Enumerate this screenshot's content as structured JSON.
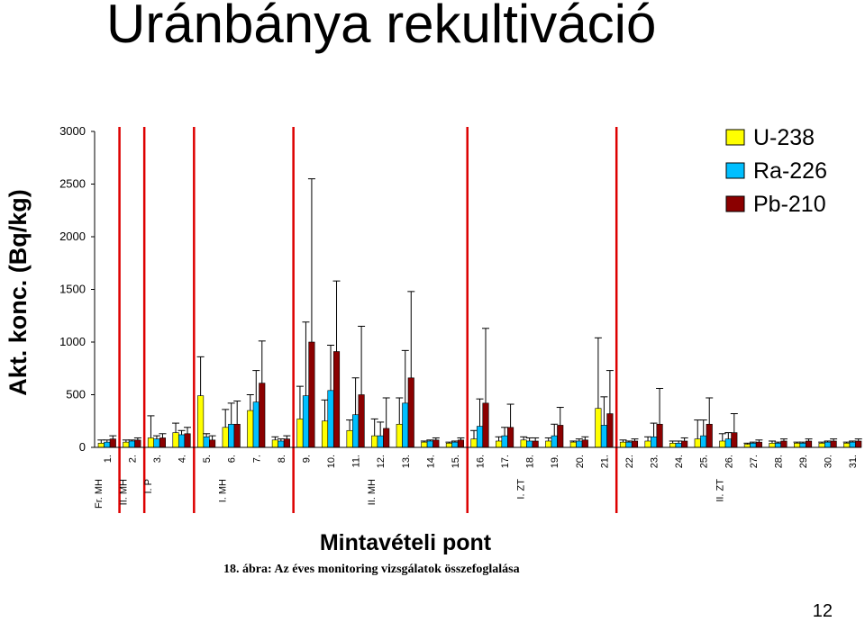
{
  "slide": {
    "title": "Uránbánya rekultiváció",
    "page_number": "12"
  },
  "chart_data": {
    "type": "bar",
    "title": "",
    "xlabel": "Mintavételi pont",
    "ylabel": "Akt. konc. (Bq/kg)",
    "caption": "18. ábra: Az éves monitoring vizsgálatok összefoglalása",
    "ylim": [
      0,
      3000
    ],
    "yticks": [
      0,
      500,
      1000,
      1500,
      2000,
      2500,
      3000
    ],
    "legend_position": "top-right",
    "categories": [
      "1.",
      "2.",
      "3.",
      "4.",
      "5.",
      "6.",
      "7.",
      "8.",
      "9.",
      "10.",
      "11.",
      "12.",
      "13.",
      "14.",
      "15.",
      "16.",
      "17.",
      "18.",
      "19.",
      "20.",
      "21.",
      "22.",
      "23.",
      "24.",
      "25.",
      "26.",
      "27.",
      "28.",
      "29.",
      "30.",
      "31."
    ],
    "group_labels": [
      {
        "label": "Fr. MH",
        "at": "1."
      },
      {
        "label": "II. MH",
        "at": "2."
      },
      {
        "label": "I. P",
        "at": "3."
      },
      {
        "label": "I. MH",
        "at": "6."
      },
      {
        "label": "II. MH",
        "at": "12."
      },
      {
        "label": "I. ZT",
        "at": "18."
      },
      {
        "label": "II. ZT",
        "at": "26."
      }
    ],
    "separators_after": [
      "1.",
      "2.",
      "4.",
      "8.",
      "15.",
      "21."
    ],
    "series": [
      {
        "name": "U-238",
        "color": "#ffff00",
        "values": [
          40,
          50,
          90,
          140,
          490,
          190,
          350,
          70,
          270,
          250,
          160,
          110,
          220,
          50,
          40,
          80,
          60,
          70,
          60,
          50,
          370,
          50,
          60,
          40,
          80,
          60,
          30,
          40,
          40,
          40,
          40
        ],
        "errors": [
          30,
          20,
          210,
          90,
          370,
          170,
          150,
          30,
          310,
          200,
          100,
          160,
          250,
          10,
          10,
          80,
          40,
          30,
          30,
          10,
          670,
          20,
          40,
          20,
          180,
          70,
          10,
          20,
          10,
          10,
          10
        ]
      },
      {
        "name": "Ra-226",
        "color": "#00bfff",
        "values": [
          50,
          60,
          80,
          120,
          100,
          220,
          430,
          60,
          490,
          540,
          310,
          110,
          420,
          60,
          50,
          200,
          110,
          60,
          110,
          60,
          210,
          50,
          100,
          40,
          110,
          80,
          40,
          40,
          40,
          50,
          50
        ],
        "errors": [
          20,
          10,
          30,
          40,
          30,
          200,
          300,
          20,
          700,
          430,
          350,
          130,
          500,
          10,
          10,
          260,
          80,
          30,
          110,
          20,
          270,
          10,
          130,
          20,
          150,
          60,
          10,
          10,
          10,
          10,
          10
        ]
      },
      {
        "name": "Pb-210",
        "color": "#8b0000",
        "values": [
          80,
          70,
          90,
          130,
          70,
          220,
          610,
          80,
          1000,
          910,
          500,
          180,
          660,
          70,
          70,
          420,
          190,
          60,
          210,
          70,
          320,
          60,
          220,
          60,
          220,
          140,
          50,
          60,
          60,
          60,
          60
        ],
        "errors": [
          30,
          20,
          40,
          60,
          40,
          220,
          400,
          30,
          1550,
          670,
          650,
          290,
          820,
          20,
          20,
          710,
          220,
          30,
          170,
          30,
          410,
          20,
          340,
          30,
          250,
          180,
          20,
          20,
          20,
          20,
          20
        ]
      }
    ]
  }
}
